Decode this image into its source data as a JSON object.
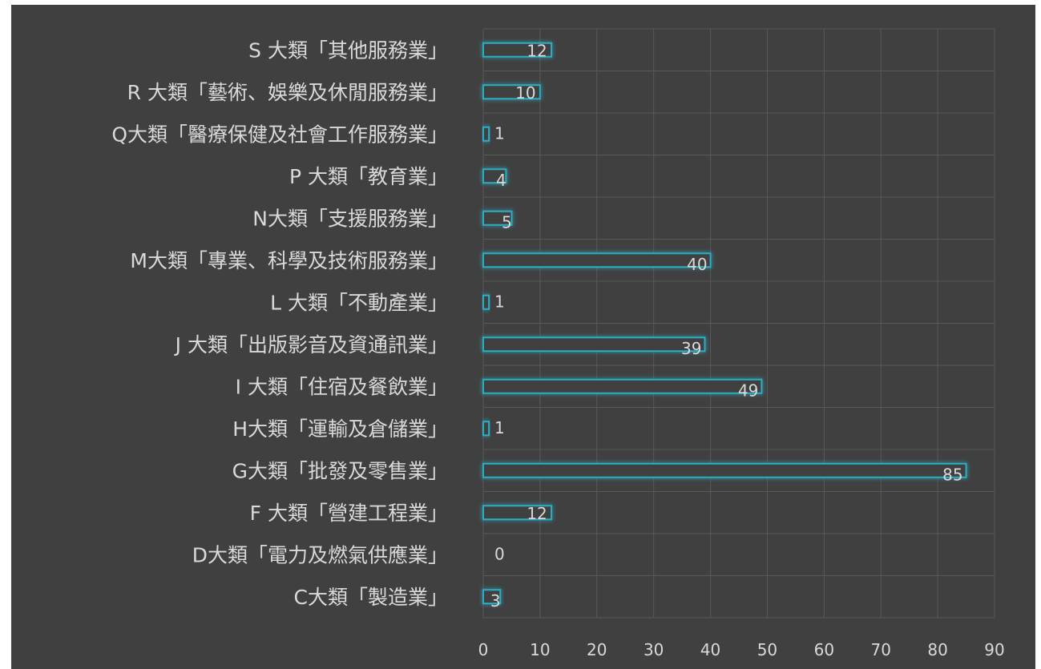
{
  "chart_data": {
    "type": "bar",
    "orientation": "horizontal",
    "title": "",
    "xlabel": "",
    "ylabel": "",
    "categories": [
      "S 大類「其他服務業」",
      "R 大類「藝術、娛樂及休閒服務業」",
      "Q大類「醫療保健及社會工作服務業」",
      "P 大類「教育業」",
      "N大類「支援服務業」",
      "M大類「專業、科學及技術服務業」",
      "L 大類「不動產業」",
      "J 大類「出版影音及資通訊業」",
      "I 大類「住宿及餐飲業」",
      "H大類「運輸及倉儲業」",
      "G大類「批發及零售業」",
      "F 大類「營建工程業」",
      "D大類「電力及燃氣供應業」",
      "C大類「製造業」"
    ],
    "values": [
      12,
      10,
      1,
      4,
      5,
      40,
      1,
      39,
      49,
      1,
      85,
      12,
      0,
      3
    ],
    "xlim": [
      0,
      90
    ],
    "xticks": [
      "0",
      "10",
      "20",
      "30",
      "40",
      "50",
      "60",
      "70",
      "80",
      "90"
    ],
    "grid": true,
    "legend": "none",
    "colors": {
      "background": "#404040",
      "bar_outline": "#2aaec3",
      "grid": "#595959",
      "text": "#d9d9d9"
    }
  }
}
